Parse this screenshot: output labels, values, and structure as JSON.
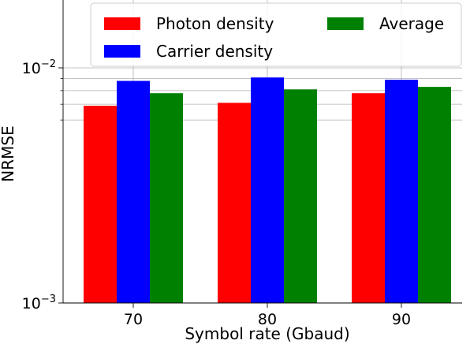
{
  "chart_data": {
    "type": "bar",
    "title": "",
    "xlabel": "Symbol rate (Gbaud)",
    "ylabel": "NRMSE",
    "yscale": "log",
    "ylim": [
      0.001,
      0.0105
    ],
    "categories": [
      "70",
      "80",
      "90"
    ],
    "series": [
      {
        "name": "Photon density",
        "color": "#ff0000",
        "values": [
          0.0069,
          0.0071,
          0.0078
        ]
      },
      {
        "name": "Carrier density",
        "color": "#0000ff",
        "values": [
          0.0088,
          0.0091,
          0.0089
        ]
      },
      {
        "name": "Average",
        "color": "#008000",
        "values": [
          0.0078,
          0.0081,
          0.0083
        ]
      }
    ],
    "y_major_ticks": [
      {
        "value": 0.001,
        "base": "10",
        "exp": "−3"
      },
      {
        "value": 0.01,
        "base": "10",
        "exp": "−2"
      }
    ],
    "y_minor_ticks": [
      0.006,
      0.007,
      0.008,
      0.009
    ],
    "grid": true,
    "legend_position": "top-right",
    "legend_columns": 2
  }
}
